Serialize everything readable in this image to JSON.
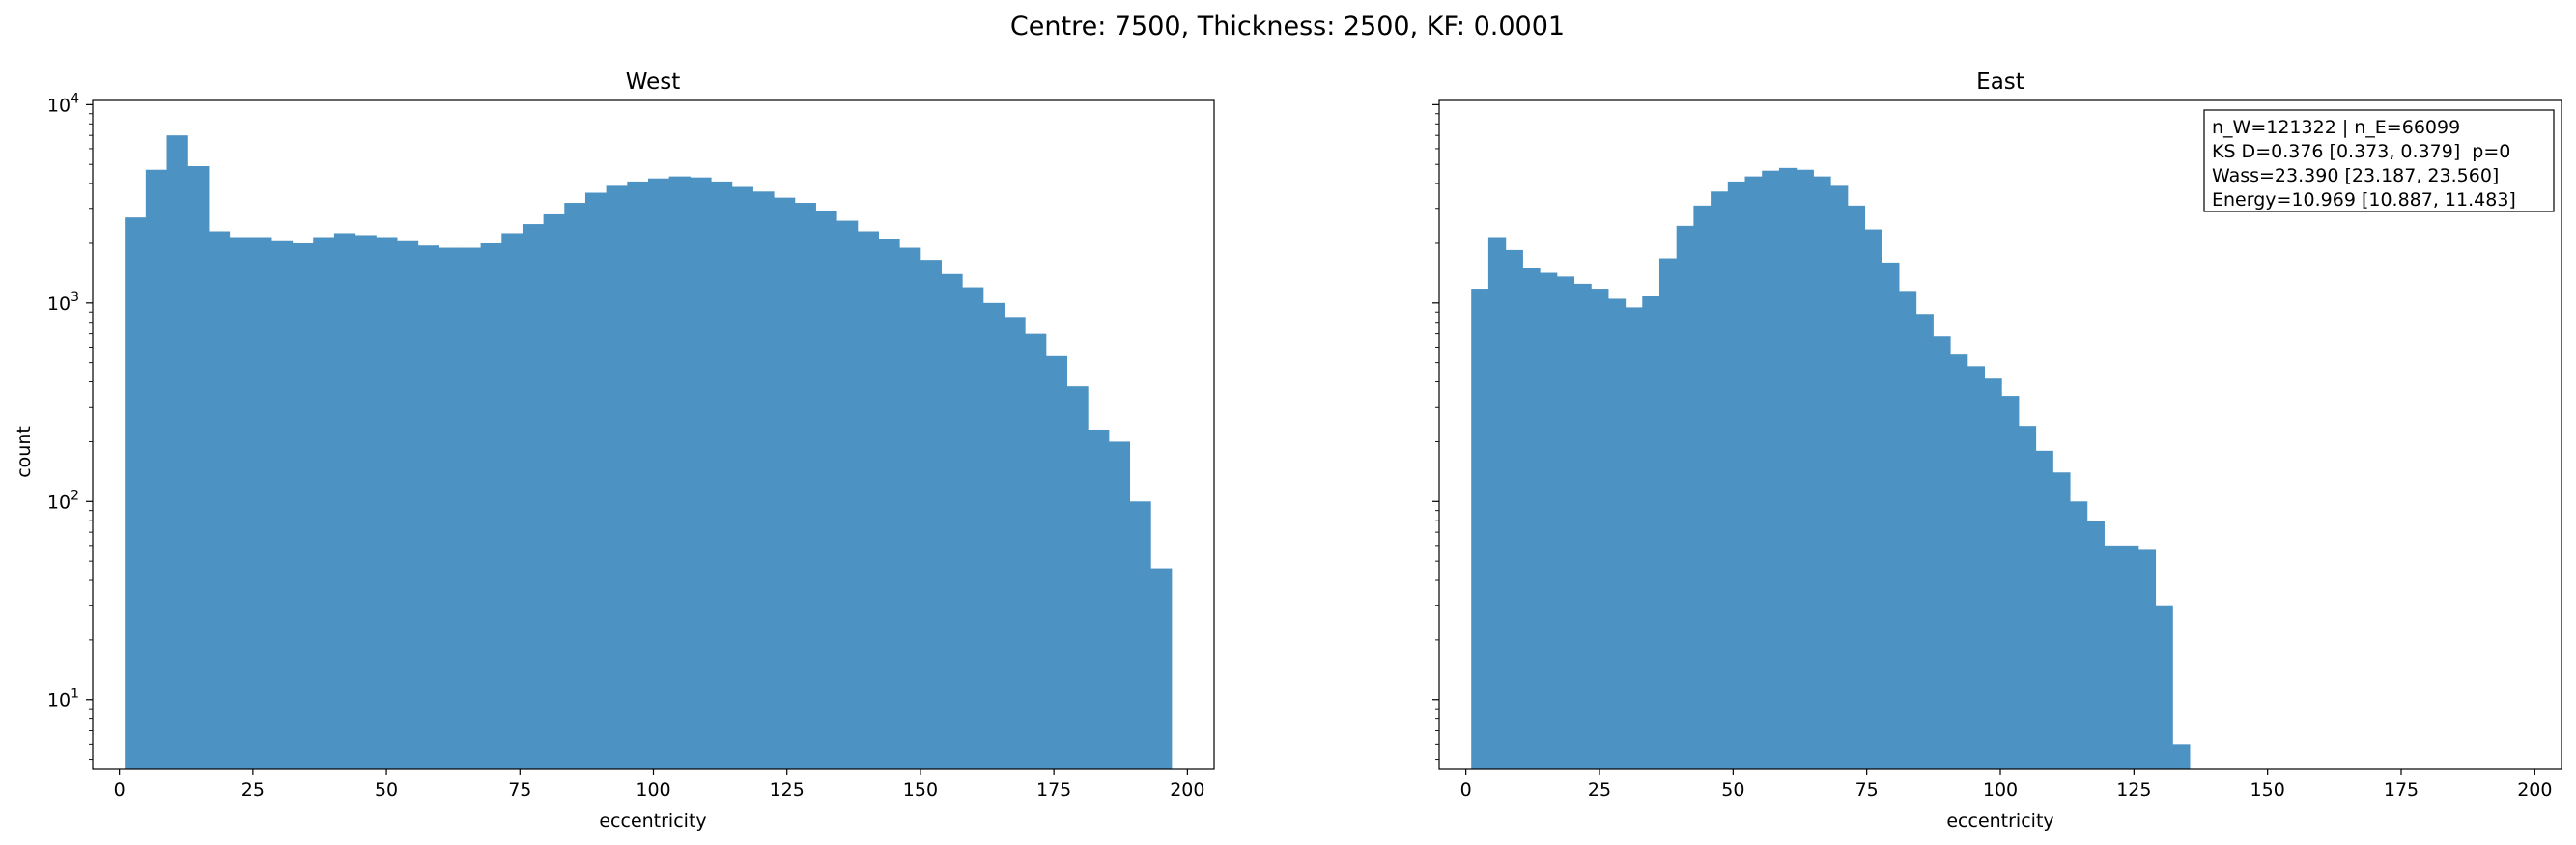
{
  "figure_title": "Centre: 7500, Thickness: 2500, KF: 0.0001",
  "colors": {
    "bar": "#4c92c3",
    "axis": "#000000"
  },
  "chart_data": [
    {
      "type": "bar",
      "title": "West",
      "xlabel": "eccentricity",
      "ylabel": "count",
      "yscale": "log",
      "xlim": [
        -5,
        205
      ],
      "ylim": [
        4.5,
        10500
      ],
      "xticks": [
        0,
        25,
        50,
        75,
        100,
        125,
        150,
        175,
        200
      ],
      "yticks": [
        {
          "value": 10,
          "base": "10",
          "exp": "1"
        },
        {
          "value": 100,
          "base": "10",
          "exp": "2"
        },
        {
          "value": 1000,
          "base": "10",
          "exp": "3"
        },
        {
          "value": 10000,
          "base": "10",
          "exp": "4"
        }
      ],
      "bin_start": 1,
      "bin_width": 3.92,
      "values": [
        2700,
        4700,
        7000,
        4900,
        2300,
        2150,
        2150,
        2050,
        2000,
        2150,
        2250,
        2200,
        2150,
        2050,
        1950,
        1900,
        1900,
        2000,
        2250,
        2500,
        2800,
        3200,
        3600,
        3900,
        4100,
        4250,
        4350,
        4300,
        4100,
        3850,
        3650,
        3400,
        3200,
        2900,
        2600,
        2300,
        2100,
        1900,
        1650,
        1400,
        1200,
        1000,
        850,
        700,
        540,
        380,
        230,
        200,
        100,
        46
      ]
    },
    {
      "type": "bar",
      "title": "East",
      "xlabel": "eccentricity",
      "yscale": "log",
      "xlim": [
        -5,
        205
      ],
      "ylim": [
        4.5,
        10500
      ],
      "xticks": [
        0,
        25,
        50,
        75,
        100,
        125,
        150,
        175,
        200
      ],
      "bin_start": 1,
      "bin_width": 3.2,
      "values": [
        1180,
        2150,
        1850,
        1500,
        1420,
        1360,
        1250,
        1180,
        1050,
        950,
        1080,
        1680,
        2450,
        3100,
        3650,
        4100,
        4350,
        4650,
        4800,
        4700,
        4350,
        3900,
        3100,
        2350,
        1600,
        1150,
        880,
        680,
        550,
        480,
        420,
        340,
        240,
        180,
        140,
        100,
        80,
        60,
        60,
        57,
        30,
        6
      ],
      "stats_box": [
        "n_W=121322 | n_E=66099",
        "KS D=0.376 [0.373, 0.379]  p=0",
        "Wass=23.390 [23.187, 23.560]",
        "Energy=10.969 [10.887, 11.483]"
      ]
    }
  ]
}
